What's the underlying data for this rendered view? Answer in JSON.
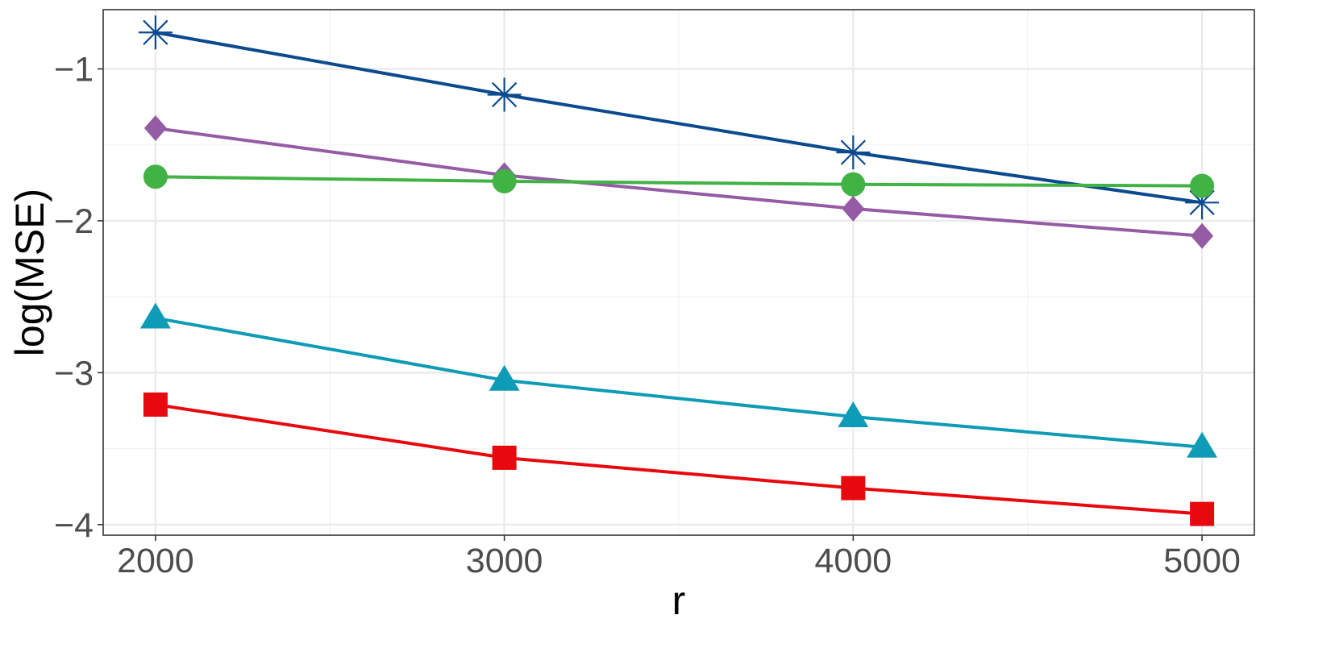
{
  "chart_data": {
    "type": "line",
    "title": "",
    "xlabel": "r",
    "ylabel": "log(MSE)",
    "x": [
      2000,
      3000,
      4000,
      5000
    ],
    "xlim": [
      1850,
      5150
    ],
    "ylim": [
      -4.07,
      -0.61
    ],
    "x_ticks": [
      2000,
      3000,
      4000,
      5000
    ],
    "x_tick_labels": [
      "2000",
      "3000",
      "4000",
      "5000"
    ],
    "y_ticks": [
      -1,
      -2,
      -3,
      -4
    ],
    "y_tick_labels": [
      "−1",
      "−2",
      "−3",
      "−4"
    ],
    "grid": true,
    "legend": "none",
    "series": [
      {
        "color": "#0b4a8f",
        "marker": "asterisk",
        "values": [
          -0.76,
          -1.17,
          -1.55,
          -1.88
        ]
      },
      {
        "color": "#955ba5",
        "marker": "diamond",
        "values": [
          -1.39,
          -1.7,
          -1.92,
          -2.1
        ]
      },
      {
        "color": "#41b244",
        "marker": "circle",
        "values": [
          -1.71,
          -1.74,
          -1.76,
          -1.77
        ]
      },
      {
        "color": "#0e9bb5",
        "marker": "triangle",
        "values": [
          -2.64,
          -3.05,
          -3.29,
          -3.49
        ]
      },
      {
        "color": "#e8090e",
        "marker": "square",
        "values": [
          -3.21,
          -3.56,
          -3.76,
          -3.93
        ]
      }
    ]
  }
}
